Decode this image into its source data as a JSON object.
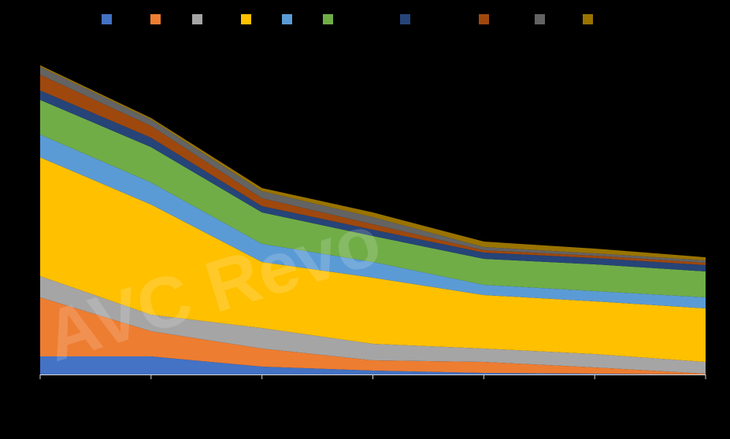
{
  "chart_data": {
    "type": "area",
    "stacked": true,
    "background": "#000000",
    "x": [
      1,
      2,
      3,
      4,
      5,
      6,
      7
    ],
    "ylim": [
      0,
      100
    ],
    "grid": false,
    "legend_placement": "top",
    "series": [
      {
        "color": "#4472C4",
        "values": [
          5.75,
          5.75,
          2.5,
          1.25,
          0.5,
          0.25,
          0
        ]
      },
      {
        "color": "#ED7D31",
        "values": [
          18.75,
          8,
          5.75,
          3.25,
          3.5,
          2,
          0.25
        ]
      },
      {
        "color": "#A5A5A5",
        "values": [
          6.75,
          5.25,
          6.5,
          5.25,
          4.25,
          4.25,
          3.75
        ]
      },
      {
        "color": "#FFC000",
        "values": [
          37.75,
          35,
          21,
          21,
          17,
          16.75,
          17
        ]
      },
      {
        "color": "#5B9BD5",
        "values": [
          7.25,
          7,
          5.75,
          5,
          3.25,
          3.25,
          3.5
        ]
      },
      {
        "color": "#70AD47",
        "values": [
          11,
          11.25,
          10,
          8.25,
          8.25,
          8.5,
          8.25
        ]
      },
      {
        "color": "#264478",
        "values": [
          3,
          3,
          2,
          2,
          2,
          2,
          2
        ]
      },
      {
        "color": "#9E480E",
        "values": [
          5,
          3.75,
          2.5,
          1.75,
          0.75,
          0.75,
          0.75
        ]
      },
      {
        "color": "#636363",
        "values": [
          2.5,
          2,
          2.25,
          2.25,
          1,
          0.75,
          0.75
        ]
      },
      {
        "color": "#997300",
        "values": [
          0.5,
          0.5,
          1,
          1.5,
          1.75,
          1.5,
          1
        ]
      }
    ],
    "watermark": "AVC Revo"
  }
}
